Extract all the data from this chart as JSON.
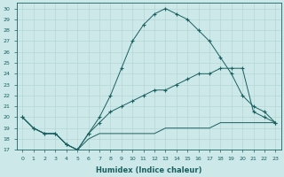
{
  "xlabel": "Humidex (Indice chaleur)",
  "bg_color": "#cce8e8",
  "line_color": "#1a6060",
  "xlim": [
    -0.5,
    23.5
  ],
  "ylim": [
    17,
    30.5
  ],
  "xticks": [
    0,
    1,
    2,
    3,
    4,
    5,
    6,
    7,
    8,
    9,
    10,
    11,
    12,
    13,
    14,
    15,
    16,
    17,
    18,
    19,
    20,
    21,
    22,
    23
  ],
  "yticks": [
    17,
    18,
    19,
    20,
    21,
    22,
    23,
    24,
    25,
    26,
    27,
    28,
    29,
    30
  ],
  "line_top_x": [
    0,
    1,
    2,
    3,
    4,
    5,
    6,
    7,
    8,
    9,
    10,
    11,
    12,
    13,
    14,
    15,
    16,
    17,
    18,
    19,
    20,
    21,
    22,
    23
  ],
  "line_top_y": [
    20.0,
    19.0,
    18.5,
    18.5,
    17.5,
    17.0,
    18.5,
    20.0,
    22.0,
    24.5,
    27.0,
    28.5,
    29.5,
    30.0,
    29.5,
    29.0,
    28.0,
    27.0,
    25.5,
    24.0,
    22.0,
    21.0,
    20.5,
    19.5
  ],
  "line_mid_x": [
    0,
    1,
    2,
    3,
    4,
    5,
    6,
    7,
    8,
    9,
    10,
    11,
    12,
    13,
    14,
    15,
    16,
    17,
    18,
    19,
    20,
    21,
    22,
    23
  ],
  "line_mid_y": [
    20.0,
    19.0,
    18.5,
    18.5,
    17.5,
    17.0,
    18.5,
    19.5,
    20.5,
    21.0,
    21.5,
    22.0,
    22.5,
    22.5,
    23.0,
    23.5,
    24.0,
    24.0,
    24.5,
    24.5,
    24.5,
    20.5,
    20.0,
    19.5
  ],
  "line_bot_x": [
    0,
    1,
    2,
    3,
    4,
    5,
    6,
    7,
    8,
    9,
    10,
    11,
    12,
    13,
    14,
    15,
    16,
    17,
    18,
    19,
    20,
    21,
    22,
    23
  ],
  "line_bot_y": [
    20.0,
    19.0,
    18.5,
    18.5,
    17.5,
    17.0,
    18.0,
    18.5,
    18.5,
    18.5,
    18.5,
    18.5,
    18.5,
    19.0,
    19.0,
    19.0,
    19.0,
    19.0,
    19.5,
    19.5,
    19.5,
    19.5,
    19.5,
    19.5
  ]
}
